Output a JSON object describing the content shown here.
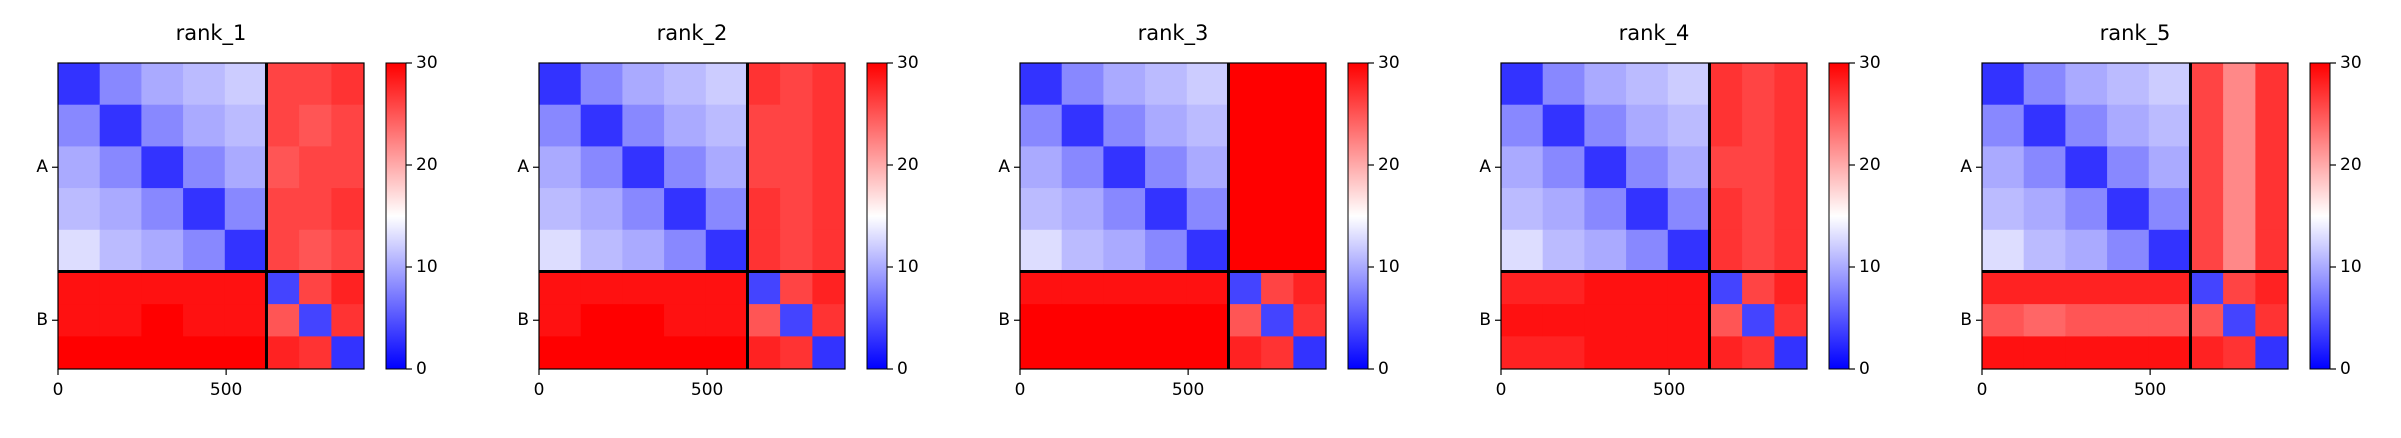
{
  "chart_data": [
    {
      "type": "heatmap",
      "title": "rank_1",
      "colormap": "bwr",
      "clim": [
        0,
        30
      ],
      "cticks": [
        0,
        10,
        20,
        30
      ],
      "xlim": [
        0,
        910
      ],
      "ylim": [
        0,
        910
      ],
      "xticks": [
        0,
        500
      ],
      "yticks": [
        {
          "value": 310,
          "label": "A"
        },
        {
          "value": 765,
          "label": "B"
        }
      ],
      "chain_breaks": [
        620
      ],
      "cell_edges": [
        0,
        124,
        248,
        372,
        496,
        620,
        717,
        813,
        910
      ],
      "cells": [
        [
          3,
          8,
          10,
          11,
          12,
          26,
          26,
          27
        ],
        [
          8,
          3,
          8,
          10,
          11,
          26,
          25,
          26
        ],
        [
          10,
          8,
          3,
          8,
          10,
          25,
          26,
          26
        ],
        [
          11,
          10,
          8,
          3,
          8,
          26,
          26,
          27
        ],
        [
          13,
          11,
          10,
          8,
          3,
          26,
          25,
          26
        ],
        [
          29,
          29,
          29,
          29,
          29,
          4,
          26,
          28
        ],
        [
          29,
          29,
          30,
          29,
          29,
          25,
          4,
          27
        ],
        [
          30,
          30,
          30,
          30,
          30,
          28,
          27,
          3
        ]
      ]
    },
    {
      "type": "heatmap",
      "title": "rank_2",
      "colormap": "bwr",
      "clim": [
        0,
        30
      ],
      "cticks": [
        0,
        10,
        20,
        30
      ],
      "xlim": [
        0,
        910
      ],
      "ylim": [
        0,
        910
      ],
      "xticks": [
        0,
        500
      ],
      "yticks": [
        {
          "value": 310,
          "label": "A"
        },
        {
          "value": 765,
          "label": "B"
        }
      ],
      "chain_breaks": [
        620
      ],
      "cell_edges": [
        0,
        124,
        248,
        372,
        496,
        620,
        717,
        813,
        910
      ],
      "cells": [
        [
          3,
          8,
          10,
          11,
          12,
          27,
          26,
          27
        ],
        [
          8,
          3,
          8,
          10,
          11,
          26,
          26,
          27
        ],
        [
          10,
          8,
          3,
          8,
          10,
          26,
          26,
          27
        ],
        [
          11,
          10,
          8,
          3,
          8,
          27,
          26,
          27
        ],
        [
          13,
          11,
          10,
          8,
          3,
          27,
          26,
          27
        ],
        [
          29,
          29,
          29,
          29,
          29,
          4,
          26,
          28
        ],
        [
          29,
          30,
          30,
          29,
          29,
          25,
          4,
          27
        ],
        [
          30,
          30,
          30,
          30,
          30,
          28,
          27,
          3
        ]
      ]
    },
    {
      "type": "heatmap",
      "title": "rank_3",
      "colormap": "bwr",
      "clim": [
        0,
        30
      ],
      "cticks": [
        0,
        10,
        20,
        30
      ],
      "xlim": [
        0,
        910
      ],
      "ylim": [
        0,
        910
      ],
      "xticks": [
        0,
        500
      ],
      "yticks": [
        {
          "value": 310,
          "label": "A"
        },
        {
          "value": 765,
          "label": "B"
        }
      ],
      "chain_breaks": [
        620
      ],
      "cell_edges": [
        0,
        124,
        248,
        372,
        496,
        620,
        717,
        813,
        910
      ],
      "cells": [
        [
          3,
          8,
          10,
          11,
          12,
          30,
          30,
          30
        ],
        [
          8,
          3,
          8,
          10,
          11,
          30,
          30,
          30
        ],
        [
          10,
          8,
          3,
          8,
          10,
          30,
          30,
          30
        ],
        [
          11,
          10,
          8,
          3,
          8,
          30,
          30,
          30
        ],
        [
          13,
          11,
          10,
          8,
          3,
          30,
          30,
          30
        ],
        [
          29,
          29,
          29,
          29,
          29,
          4,
          26,
          28
        ],
        [
          30,
          30,
          30,
          30,
          30,
          25,
          4,
          27
        ],
        [
          30,
          30,
          30,
          30,
          30,
          28,
          27,
          3
        ]
      ]
    },
    {
      "type": "heatmap",
      "title": "rank_4",
      "colormap": "bwr",
      "clim": [
        0,
        30
      ],
      "cticks": [
        0,
        10,
        20,
        30
      ],
      "xlim": [
        0,
        910
      ],
      "ylim": [
        0,
        910
      ],
      "xticks": [
        0,
        500
      ],
      "yticks": [
        {
          "value": 310,
          "label": "A"
        },
        {
          "value": 765,
          "label": "B"
        }
      ],
      "chain_breaks": [
        620
      ],
      "cell_edges": [
        0,
        124,
        248,
        372,
        496,
        620,
        717,
        813,
        910
      ],
      "cells": [
        [
          3,
          8,
          10,
          11,
          12,
          27,
          26,
          27
        ],
        [
          8,
          3,
          8,
          10,
          11,
          27,
          26,
          27
        ],
        [
          10,
          8,
          3,
          8,
          10,
          26,
          26,
          27
        ],
        [
          11,
          10,
          8,
          3,
          8,
          27,
          26,
          27
        ],
        [
          13,
          11,
          10,
          8,
          3,
          27,
          26,
          27
        ],
        [
          28,
          28,
          29,
          29,
          29,
          4,
          26,
          28
        ],
        [
          29,
          29,
          29,
          29,
          29,
          25,
          4,
          27
        ],
        [
          28,
          28,
          29,
          29,
          29,
          28,
          27,
          3
        ]
      ]
    },
    {
      "type": "heatmap",
      "title": "rank_5",
      "colormap": "bwr",
      "clim": [
        0,
        30
      ],
      "cticks": [
        0,
        10,
        20,
        30
      ],
      "xlim": [
        0,
        910
      ],
      "ylim": [
        0,
        910
      ],
      "xticks": [
        0,
        500
      ],
      "yticks": [
        {
          "value": 310,
          "label": "A"
        },
        {
          "value": 765,
          "label": "B"
        }
      ],
      "chain_breaks": [
        620
      ],
      "cell_edges": [
        0,
        124,
        248,
        372,
        496,
        620,
        717,
        813,
        910
      ],
      "cells": [
        [
          3,
          8,
          10,
          11,
          12,
          26,
          22,
          27
        ],
        [
          8,
          3,
          8,
          10,
          11,
          26,
          22,
          27
        ],
        [
          10,
          8,
          3,
          8,
          10,
          26,
          22,
          27
        ],
        [
          11,
          10,
          8,
          3,
          8,
          26,
          22,
          27
        ],
        [
          13,
          11,
          10,
          8,
          3,
          26,
          22,
          27
        ],
        [
          28,
          28,
          28,
          28,
          28,
          4,
          26,
          28
        ],
        [
          25,
          24,
          25,
          25,
          25,
          25,
          4,
          27
        ],
        [
          29,
          29,
          29,
          29,
          29,
          28,
          27,
          3
        ]
      ]
    }
  ]
}
